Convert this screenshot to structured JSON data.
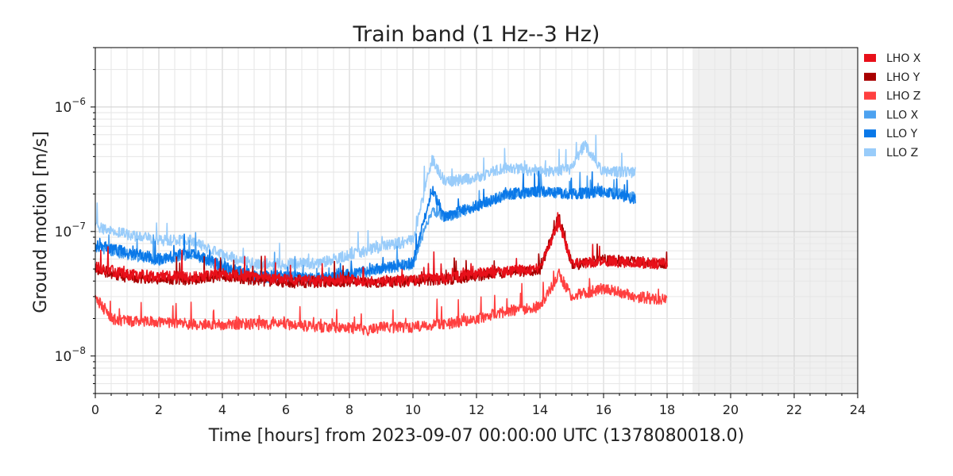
{
  "chart_data": {
    "type": "line",
    "title": "Train band (1 Hz--3 Hz)",
    "xlabel": "Time [hours] from 2023-09-07 00:00:00 UTC (1378080018.0)",
    "ylabel": "Ground motion [m/s]",
    "xlim": [
      0,
      24
    ],
    "ylim": [
      5e-09,
      3e-06
    ],
    "yscale": "log",
    "xticks": [
      0,
      2,
      4,
      6,
      8,
      10,
      12,
      14,
      16,
      18,
      20,
      22,
      24
    ],
    "xtick_labels": [
      "0",
      "2",
      "4",
      "6",
      "8",
      "10",
      "12",
      "14",
      "16",
      "18",
      "20",
      "22",
      "24"
    ],
    "yticks": [
      {
        "value": 1e-08,
        "base": "10",
        "exp": "−8"
      },
      {
        "value": 1e-07,
        "base": "10",
        "exp": "−7"
      },
      {
        "value": 1e-06,
        "base": "10",
        "exp": "−6"
      }
    ],
    "grid": true,
    "legend_position": "outside-top-right",
    "shaded_region": {
      "x": [
        18.8,
        24
      ],
      "color": "#f0f0f0"
    },
    "series": [
      {
        "name": "LHO X",
        "color": "#e8101a",
        "x": [
          0,
          1,
          2,
          3,
          4,
          5,
          6,
          7,
          8,
          9,
          10,
          11,
          12,
          13,
          14,
          14.6,
          15,
          16,
          17,
          18
        ],
        "values": [
          5.2e-08,
          4.5e-08,
          4.4e-08,
          4.3e-08,
          4.6e-08,
          4.3e-08,
          4.1e-08,
          4e-08,
          4.1e-08,
          4e-08,
          4.1e-08,
          4.2e-08,
          4.6e-08,
          4.8e-08,
          5e-08,
          1.2e-07,
          5.5e-08,
          5.8e-08,
          5.6e-08,
          5.5e-08
        ]
      },
      {
        "name": "LHO Y",
        "color": "#a80000",
        "x": [
          0,
          1,
          2,
          3,
          4,
          5,
          6,
          7,
          8,
          9,
          10,
          11,
          12,
          13,
          14,
          14.6,
          15,
          16,
          17,
          18
        ],
        "values": [
          5e-08,
          4.3e-08,
          4.2e-08,
          4.1e-08,
          4.4e-08,
          4.1e-08,
          3.9e-08,
          3.9e-08,
          4e-08,
          3.9e-08,
          4e-08,
          4.1e-08,
          4.4e-08,
          4.7e-08,
          4.9e-08,
          1.3e-07,
          5.4e-08,
          5.9e-08,
          5.7e-08,
          5.6e-08
        ]
      },
      {
        "name": "LHO Z",
        "color": "#ff4040",
        "x": [
          0,
          0.5,
          1,
          2,
          3,
          4,
          5,
          6,
          7,
          8,
          8.5,
          9,
          10,
          11,
          12,
          13,
          14,
          14.6,
          15,
          16,
          17,
          18
        ],
        "values": [
          3e-08,
          2e-08,
          1.9e-08,
          1.9e-08,
          1.8e-08,
          1.8e-08,
          1.8e-08,
          1.8e-08,
          1.7e-08,
          1.7e-08,
          1.6e-08,
          1.7e-08,
          1.7e-08,
          1.8e-08,
          2e-08,
          2.3e-08,
          2.5e-08,
          4.5e-08,
          3e-08,
          3.5e-08,
          3e-08,
          2.8e-08
        ]
      },
      {
        "name": "LLO X",
        "color": "#4da2f0",
        "x": [
          0,
          1,
          2,
          3,
          4,
          5,
          6,
          7,
          8,
          9,
          10,
          10.6,
          11,
          12,
          13,
          14,
          15,
          16,
          17
        ],
        "values": [
          7.5e-08,
          6.6e-08,
          5.9e-08,
          6.6e-08,
          5.2e-08,
          4.3e-08,
          4.3e-08,
          4.2e-08,
          4.4e-08,
          5e-08,
          5.5e-08,
          1.5e-07,
          1.3e-07,
          1.6e-07,
          2e-07,
          2.1e-07,
          2e-07,
          2.1e-07,
          1.9e-07
        ]
      },
      {
        "name": "LLO Y",
        "color": "#0a78e8",
        "x": [
          0,
          1,
          2,
          3,
          4,
          5,
          6,
          7,
          8,
          9,
          10,
          10.6,
          11,
          12,
          13,
          14,
          15,
          16,
          17
        ],
        "values": [
          7.8e-08,
          6.8e-08,
          6e-08,
          6.8e-08,
          5.3e-08,
          4.4e-08,
          4.4e-08,
          4.3e-08,
          4.5e-08,
          5.1e-08,
          5.6e-08,
          2.2e-07,
          1.3e-07,
          1.6e-07,
          2e-07,
          2.1e-07,
          2e-07,
          2.1e-07,
          1.8e-07
        ]
      },
      {
        "name": "LLO Z",
        "color": "#99ccfa",
        "x": [
          0,
          1,
          2,
          3,
          4,
          5,
          6,
          7,
          8,
          9,
          10,
          10.6,
          11,
          12,
          13,
          14,
          15,
          15.4,
          16,
          17
        ],
        "values": [
          1.1e-07,
          9.5e-08,
          8.5e-08,
          8.5e-08,
          6.5e-08,
          5.5e-08,
          5.5e-08,
          5.5e-08,
          6.5e-08,
          7.5e-08,
          8.5e-08,
          3.8e-07,
          2.5e-07,
          2.7e-07,
          3.3e-07,
          3e-07,
          3.2e-07,
          5e-07,
          3e-07,
          3e-07
        ]
      }
    ]
  }
}
